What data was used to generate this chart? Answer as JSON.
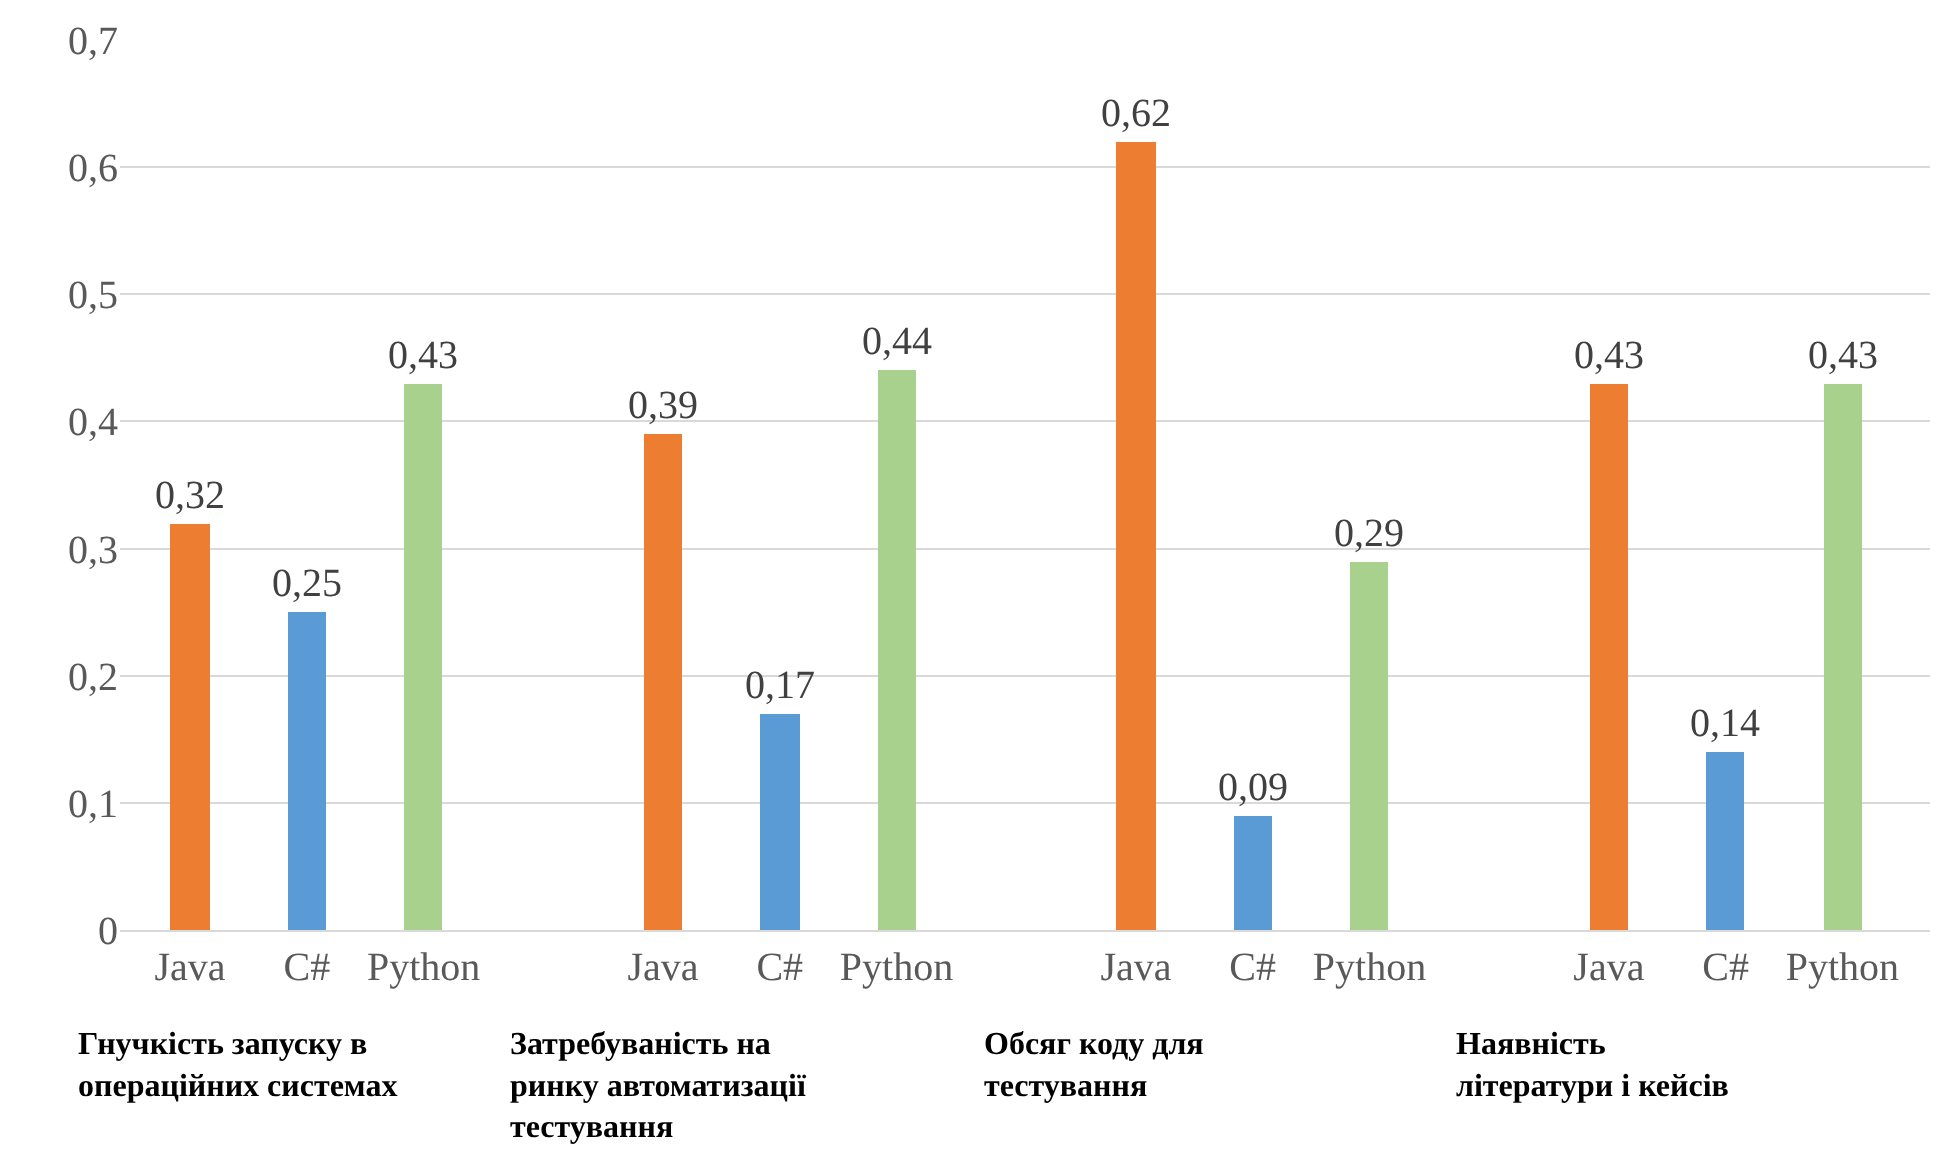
{
  "chart_data": {
    "type": "bar",
    "categories": [
      "Java",
      "C#",
      "Python",
      "Java",
      "C#",
      "Python",
      "Java",
      "C#",
      "Python",
      "Java",
      "C#",
      "Python"
    ],
    "values": [
      0.32,
      0.25,
      0.43,
      0.39,
      0.17,
      0.44,
      0.62,
      0.09,
      0.29,
      0.43,
      0.14,
      0.43
    ],
    "colors": [
      "#ed7d31",
      "#5b9bd5",
      "#a9d18e",
      "#ed7d31",
      "#5b9bd5",
      "#a9d18e",
      "#ed7d31",
      "#5b9bd5",
      "#a9d18e",
      "#ed7d31",
      "#5b9bd5",
      "#a9d18e"
    ],
    "value_labels": [
      "0,32",
      "0,25",
      "0,43",
      "0,39",
      "0,17",
      "0,44",
      "0,62",
      "0,09",
      "0,29",
      "0,43",
      "0,14",
      "0,43"
    ],
    "ylim": [
      0,
      0.7
    ],
    "yticks": [
      {
        "value": 0,
        "label": "0"
      },
      {
        "value": 0.1,
        "label": "0,1"
      },
      {
        "value": 0.2,
        "label": "0,2"
      },
      {
        "value": 0.3,
        "label": "0,3"
      },
      {
        "value": 0.4,
        "label": "0,4"
      },
      {
        "value": 0.5,
        "label": "0,5"
      },
      {
        "value": 0.6,
        "label": "0,6"
      },
      {
        "value": 0.7,
        "label": "0,7"
      }
    ],
    "grid": "y",
    "annotations": [
      "Гнучкість запуску в\nопераційних системах",
      "Затребуваність на\nринку автоматизації\nтестування",
      "Обсяг коду для\nтестування",
      "Наявність\nлітератури і кейсів"
    ]
  }
}
